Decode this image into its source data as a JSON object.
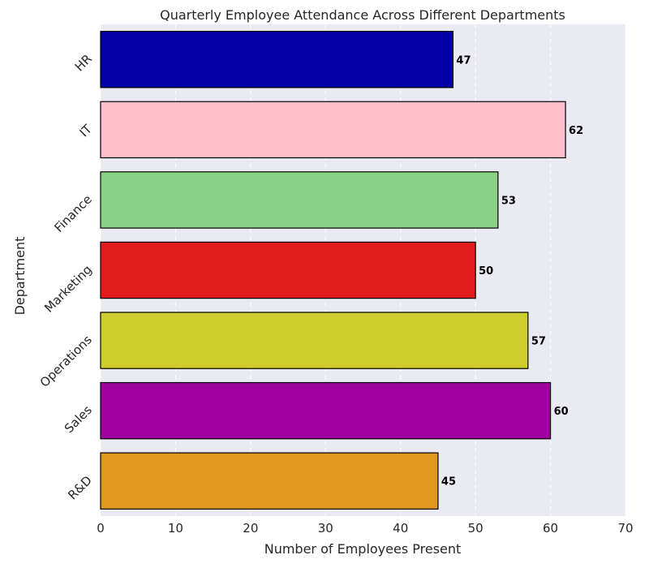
{
  "chart_data": {
    "type": "bar",
    "orientation": "horizontal",
    "title": "Quarterly Employee Attendance Across Different Departments",
    "xlabel": "Number of Employees Present",
    "ylabel": "Department",
    "xlim": [
      0,
      70
    ],
    "xticks": [
      0,
      10,
      20,
      30,
      40,
      50,
      60,
      70
    ],
    "grid": true,
    "categories": [
      "HR",
      "IT",
      "Finance",
      "Marketing",
      "Operations",
      "Sales",
      "R&D"
    ],
    "values": [
      47,
      62,
      53,
      50,
      57,
      60,
      45
    ],
    "colors": [
      "#0000a4",
      "#ffc0cb",
      "#8ad188",
      "#e01d1d",
      "#cecd2d",
      "#9e009e",
      "#df9a1d"
    ],
    "background": "#eaeaf2"
  }
}
